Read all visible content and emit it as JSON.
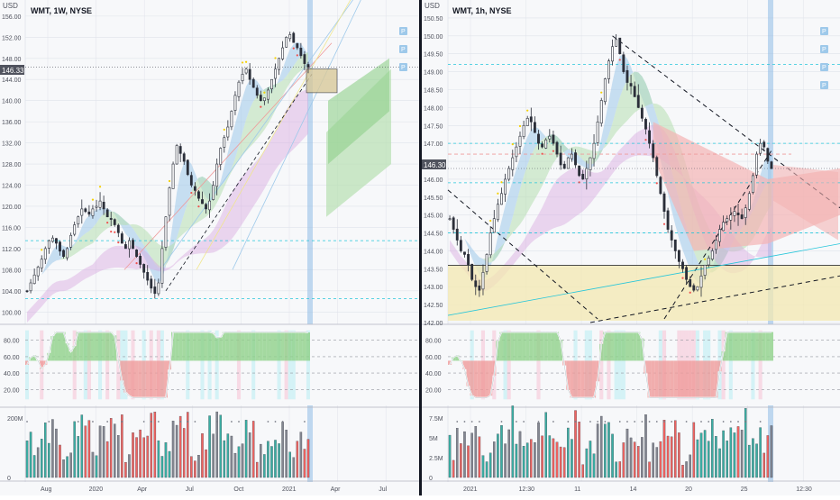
{
  "colors": {
    "up": "#26a69a",
    "down": "#ef5350",
    "candle": "#2a2e39",
    "panelBg": "#f7f8fa",
    "grid": "#e0e3eb",
    "divider": "#131722",
    "axisText": "#50535e",
    "priceTag": "#50535e",
    "ribbonBlue": "#9ec9ea",
    "ribbonGreen": "#b7dfb0",
    "ribbonRed": "#f4b4b4",
    "purple": "#d8a8e0",
    "cyanLine": "#26c6da",
    "yellowZone": "#f3e8b0",
    "oscLine": "#ffffff",
    "highlightCol": "#8fbce6"
  },
  "left": {
    "title": "WMT, 1W, NYSE",
    "currency": "USD",
    "price_tag": "146.33",
    "price_ticks": [
      "156.00",
      "152.00",
      "148.00",
      "144.00",
      "140.00",
      "136.00",
      "132.00",
      "128.00",
      "124.00",
      "120.00",
      "116.00",
      "112.00",
      "108.00",
      "104.00",
      "100.00"
    ],
    "osc_ticks": [
      "80.00",
      "60.00",
      "40.00",
      "20.00"
    ],
    "vol_ticks": [
      "200M",
      "0"
    ],
    "time_ticks": [
      "Aug",
      "2020",
      "Apr",
      "Jul",
      "Oct",
      "2021",
      "Apr",
      "Jul"
    ],
    "markers": [
      "P",
      "P",
      "P"
    ]
  },
  "right": {
    "title": "WMT, 1h, NYSE",
    "currency": "USD",
    "price_tag": "146.30",
    "price_ticks": [
      "150.50",
      "150.00",
      "149.50",
      "149.00",
      "148.50",
      "148.00",
      "147.50",
      "147.00",
      "146.50",
      "146.00",
      "145.50",
      "145.00",
      "144.50",
      "144.00",
      "143.50",
      "143.00",
      "142.50",
      "142.00"
    ],
    "osc_ticks": [
      "80.00",
      "60.00",
      "40.00",
      "20.00"
    ],
    "vol_ticks": [
      "7.5M",
      "5M",
      "2.5M",
      "0"
    ],
    "time_ticks": [
      "2021",
      "12:30",
      "11",
      "14",
      "20",
      "25",
      "12:30"
    ],
    "markers": [
      "P",
      "P",
      "P",
      "P"
    ]
  },
  "chart_data": [
    {
      "type": "candlestick",
      "title": "WMT, 1W, NYSE",
      "ylim": [
        98,
        157
      ],
      "x_range": [
        "2019-06",
        "2021-07"
      ],
      "close": [
        104,
        105.5,
        107,
        108.5,
        110,
        112,
        113.5,
        114,
        113,
        111.5,
        110.5,
        112,
        114.5,
        116.5,
        118,
        119.5,
        119,
        118.5,
        119.5,
        120,
        121,
        119.5,
        118,
        117.5,
        116.5,
        115,
        113,
        112,
        113.5,
        112,
        110.5,
        109,
        107.5,
        106,
        104.5,
        103.5,
        105.5,
        112,
        118,
        123.5,
        128,
        131.5,
        130,
        128.5,
        126,
        124,
        123,
        121.5,
        120.5,
        119.5,
        121,
        124,
        128,
        131,
        133,
        135,
        138,
        141,
        143.5,
        145,
        146,
        144,
        142.5,
        141,
        140,
        140.5,
        142,
        144,
        146,
        148,
        150,
        152,
        152.5,
        151,
        150,
        148.5,
        147,
        146.33
      ],
      "last_price": 146.33
    },
    {
      "type": "candlestick",
      "title": "WMT, 1h, NYSE",
      "ylim": [
        142,
        150.7
      ],
      "close": [
        144.9,
        144.6,
        144.3,
        144.0,
        143.9,
        143.6,
        143.2,
        143.0,
        142.9,
        143.4,
        143.9,
        144.5,
        144.9,
        145.3,
        145.6,
        146.0,
        146.3,
        146.6,
        146.9,
        147.2,
        147.5,
        147.7,
        147.6,
        147.3,
        147.0,
        146.9,
        147.1,
        147.2,
        147.0,
        146.7,
        146.4,
        146.3,
        146.6,
        146.7,
        146.4,
        146.1,
        146.0,
        146.3,
        146.6,
        147.0,
        147.6,
        148.2,
        148.8,
        149.3,
        149.7,
        149.9,
        149.5,
        149.0,
        148.7,
        148.6,
        148.3,
        148.0,
        147.7,
        147.4,
        147.0,
        146.6,
        146.1,
        145.6,
        145.1,
        144.6,
        144.3,
        144.0,
        143.7,
        143.5,
        143.2,
        143.0,
        142.9,
        143.0,
        143.3,
        143.6,
        143.8,
        144.0,
        144.3,
        144.6,
        144.8,
        144.9,
        145.0,
        145.1,
        145.0,
        144.9,
        145.2,
        145.6,
        146.1,
        146.7,
        147.0,
        146.9,
        146.5,
        146.3
      ],
      "last_price": 146.3
    }
  ]
}
